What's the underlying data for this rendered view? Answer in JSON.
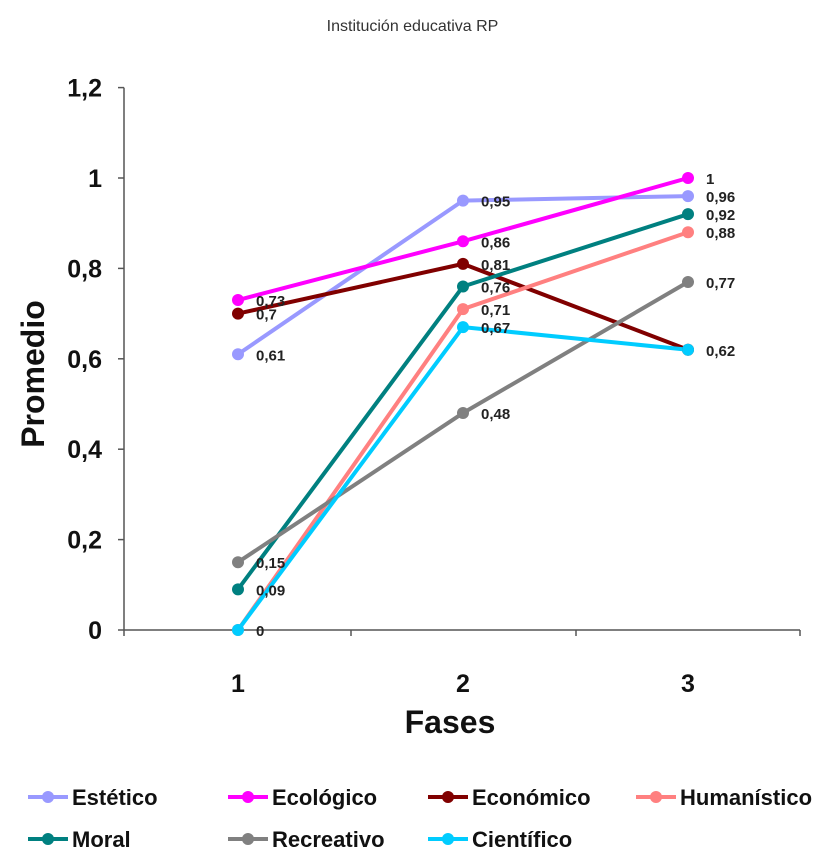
{
  "chart_data": {
    "type": "line",
    "title": "Institución educativa RP",
    "xlabel": "Fases",
    "ylabel": "Promedio",
    "categories": [
      "1",
      "2",
      "3"
    ],
    "ylim": [
      0,
      1.2
    ],
    "yticks": [
      "0",
      "0,2",
      "0,4",
      "0,6",
      "0,8",
      "1",
      "1,2"
    ],
    "grid": false,
    "legend_position": "bottom",
    "series": [
      {
        "name": "Estético",
        "color": "#9999ff",
        "values": [
          0.61,
          0.95,
          0.96
        ],
        "labels": [
          "0,61",
          "0,95",
          "0,96"
        ]
      },
      {
        "name": "Ecológico",
        "color": "#ff00ff",
        "values": [
          0.73,
          0.86,
          1
        ],
        "labels": [
          "0,73",
          "0,86",
          "1"
        ]
      },
      {
        "name": "Económico",
        "color": "#800000",
        "values": [
          0.7,
          0.81,
          0.62
        ],
        "labels": [
          "0,7",
          "0,81",
          ""
        ]
      },
      {
        "name": "Humanístico",
        "color": "#ff8080",
        "values": [
          0,
          0.71,
          0.88
        ],
        "labels": [
          "",
          "0,71",
          "0,88"
        ]
      },
      {
        "name": "Moral",
        "color": "#008080",
        "values": [
          0.09,
          0.76,
          0.92
        ],
        "labels": [
          "0,09",
          "0,76",
          "0,92"
        ]
      },
      {
        "name": "Recreativo",
        "color": "#808080",
        "values": [
          0.15,
          0.48,
          0.77
        ],
        "labels": [
          "0,15",
          "0,48",
          "0,77"
        ]
      },
      {
        "name": "Científico",
        "color": "#00ccff",
        "values": [
          0,
          0.67,
          0.62
        ],
        "labels": [
          "0",
          "0,67",
          "0,62"
        ]
      }
    ]
  }
}
